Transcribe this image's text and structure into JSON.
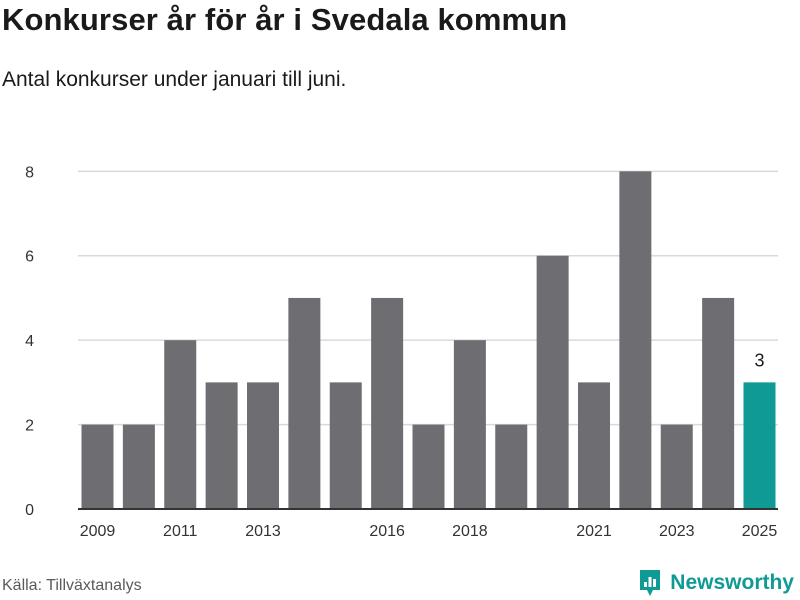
{
  "title": "Konkurser år för år i Svedala kommun",
  "subtitle": "Antal konkurser under januari till juni.",
  "source": "Källa: Tillväxtanalys",
  "brand": "Newsworthy",
  "colors": {
    "bar": "#6e6d72",
    "highlight": "#109a96",
    "grid": "#d9d9d9",
    "axis": "#333333"
  },
  "chart_data": {
    "type": "bar",
    "title": "Konkurser år för år i Svedala kommun",
    "subtitle": "Antal konkurser under januari till juni.",
    "categories": [
      "2009",
      "2010",
      "2011",
      "2012",
      "2013",
      "2014",
      "2015",
      "2016",
      "2017",
      "2018",
      "2019",
      "2020",
      "2021",
      "2022",
      "2023",
      "2024",
      "2025"
    ],
    "values": [
      2,
      2,
      4,
      3,
      3,
      5,
      3,
      5,
      2,
      4,
      2,
      6,
      3,
      8,
      2,
      5,
      3
    ],
    "x_tick_labels": [
      "2009",
      "2011",
      "2013",
      "2016",
      "2018",
      "2021",
      "2023",
      "2025"
    ],
    "y_ticks": [
      0,
      2,
      4,
      6,
      8
    ],
    "ylim": [
      0,
      8.6
    ],
    "highlight_category": "2025",
    "highlight_label": "3",
    "xlabel": "",
    "ylabel": "",
    "grid": true,
    "legend": "none"
  }
}
